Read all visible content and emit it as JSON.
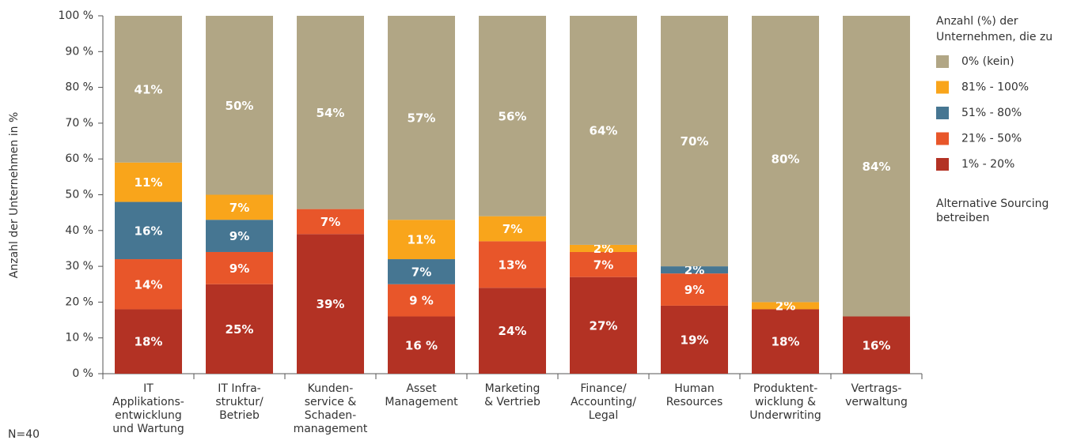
{
  "chart_data": {
    "type": "stacked_bar",
    "y_label": "Anzahl der Unternehmen in %",
    "note": "N=40",
    "legend_title": [
      "Anzahl (%) der",
      "Unternehmen, die zu"
    ],
    "legend_note": [
      "Alternative Sourcing",
      "betreiben"
    ],
    "categories": [
      [
        "IT",
        "Applikations-",
        "entwicklung",
        "und Wartung"
      ],
      [
        "IT Infra-",
        "struktur/",
        "Betrieb"
      ],
      [
        "Kunden-",
        "service &",
        "Schaden-",
        "management"
      ],
      [
        "Asset",
        "Management"
      ],
      [
        "Marketing",
        "& Vertrieb"
      ],
      [
        "Finance/",
        "Accounting/",
        "Legal"
      ],
      [
        "Human",
        "Resources"
      ],
      [
        "Produktent-",
        "wicklung &",
        "Underwriting"
      ],
      [
        "Vertrags-",
        "verwaltung"
      ]
    ],
    "series": [
      {
        "name": "1% - 20%",
        "color": "#b33224",
        "values": [
          18,
          25,
          39,
          16,
          24,
          27,
          19,
          18,
          16
        ],
        "value_labels": [
          "18%",
          "25%",
          "39%",
          "16 %",
          "24%",
          "27%",
          "19%",
          "18%",
          "16%"
        ]
      },
      {
        "name": "21% - 50%",
        "color": "#e8562a",
        "values": [
          14,
          9,
          7,
          9,
          13,
          7,
          9,
          null,
          null
        ],
        "value_labels": [
          "14%",
          "9%",
          "7%",
          "9 %",
          "13%",
          "7%",
          "9%",
          null,
          null
        ]
      },
      {
        "name": "51% - 80%",
        "color": "#467692",
        "values": [
          16,
          9,
          null,
          7,
          null,
          null,
          2,
          null,
          null
        ],
        "value_labels": [
          "16%",
          "9%",
          null,
          "7%",
          null,
          null,
          "2%",
          null,
          null
        ]
      },
      {
        "name": "81% - 100%",
        "color": "#f9a51b",
        "values": [
          11,
          7,
          null,
          11,
          7,
          2,
          null,
          2,
          null
        ],
        "value_labels": [
          "11%",
          "7%",
          null,
          "11%",
          "7%",
          "2%",
          null,
          "2%",
          null
        ]
      },
      {
        "name": "0% (kein)",
        "color": "#b1a685",
        "values": [
          41,
          50,
          54,
          57,
          56,
          64,
          70,
          80,
          84
        ],
        "value_labels": [
          "41%",
          "50%",
          "54%",
          "57%",
          "56%",
          "64%",
          "70%",
          "80%",
          "84%"
        ]
      }
    ],
    "ylim": [
      0,
      100
    ],
    "yticks": [
      {
        "value": 0,
        "label": "0 %"
      },
      {
        "value": 10,
        "label": "10 %"
      },
      {
        "value": 20,
        "label": "20 %"
      },
      {
        "value": 30,
        "label": "30 %"
      },
      {
        "value": 40,
        "label": "40 %"
      },
      {
        "value": 50,
        "label": "50 %"
      },
      {
        "value": 60,
        "label": "60 %"
      },
      {
        "value": 70,
        "label": "70 %"
      },
      {
        "value": 80,
        "label": "80 %"
      },
      {
        "value": 90,
        "label": "90 %"
      },
      {
        "value": 100,
        "label": "100 %"
      }
    ]
  }
}
